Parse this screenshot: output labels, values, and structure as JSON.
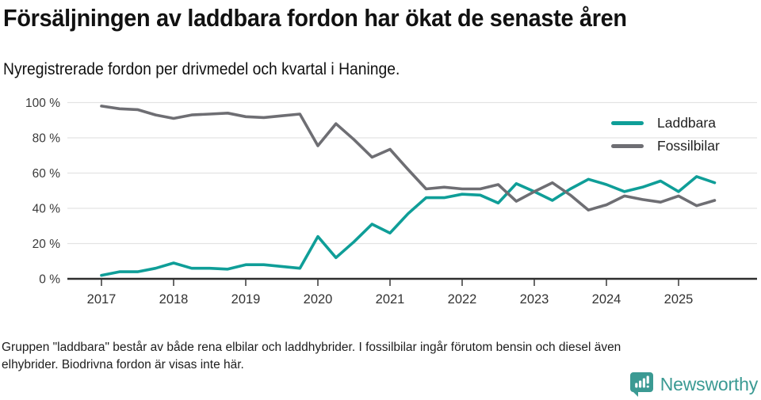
{
  "header": {
    "title": "Försäljningen av laddbara fordon har ökat de senaste åren",
    "subtitle": "Nyregistrerade fordon per drivmedel och kvartal i Haninge."
  },
  "chart_data": {
    "type": "line",
    "title": "Försäljningen av laddbara fordon har ökat de senaste åren",
    "subtitle": "Nyregistrerade fordon per drivmedel och kvartal i Haninge.",
    "x": [
      "2017Q1",
      "2017Q2",
      "2017Q3",
      "2017Q4",
      "2018Q1",
      "2018Q2",
      "2018Q3",
      "2018Q4",
      "2019Q1",
      "2019Q2",
      "2019Q3",
      "2019Q4",
      "2020Q1",
      "2020Q2",
      "2020Q3",
      "2020Q4",
      "2021Q1",
      "2021Q2",
      "2021Q3",
      "2021Q4",
      "2022Q1",
      "2022Q2",
      "2022Q3",
      "2022Q4",
      "2023Q1",
      "2023Q2",
      "2023Q3",
      "2023Q4",
      "2024Q1",
      "2024Q2",
      "2024Q3",
      "2024Q4",
      "2025Q1",
      "2025Q2",
      "2025Q3"
    ],
    "series": [
      {
        "name": "Laddbara",
        "color": "#0f9e98",
        "values": [
          2,
          4,
          4,
          6,
          9,
          6,
          6,
          5.5,
          8,
          8,
          7,
          6,
          24,
          12,
          21,
          31,
          26,
          37,
          46,
          46,
          48,
          47.5,
          43,
          54,
          49.5,
          44.5,
          51,
          56.5,
          53.5,
          49.5,
          52,
          55.5,
          49.5,
          58,
          54.5
        ]
      },
      {
        "name": "Fossilbilar",
        "color": "#6e6e73",
        "values": [
          98,
          96.5,
          96,
          93,
          91,
          93,
          93.5,
          94,
          92,
          91.5,
          92.5,
          93.5,
          75.5,
          88,
          79,
          69,
          73.5,
          62,
          51,
          52,
          51,
          51,
          53.5,
          44,
          49.5,
          54.5,
          47.5,
          39,
          42,
          47,
          45,
          43.5,
          47,
          41.5,
          44.5
        ]
      }
    ],
    "ylim": [
      0,
      100
    ],
    "ytick_values": [
      0,
      20,
      40,
      60,
      80,
      100
    ],
    "ytick_labels": [
      "0 %",
      "20 %",
      "40 %",
      "60 %",
      "80 %",
      "100 %"
    ],
    "xtick_labels": [
      "2017",
      "2018",
      "2019",
      "2020",
      "2021",
      "2022",
      "2023",
      "2024",
      "2025"
    ],
    "grid": true,
    "legend_position": "top-right"
  },
  "footer": {
    "lines": [
      "Gruppen \"laddbara\" består av både rena elbilar och laddhybrider. I fossilbilar ingår förutom bensin och diesel även",
      "elhybrider. Biodrivna fordon är visas inte här."
    ]
  },
  "brand": {
    "name": "Newsworthy",
    "color": "#3b9a93"
  }
}
